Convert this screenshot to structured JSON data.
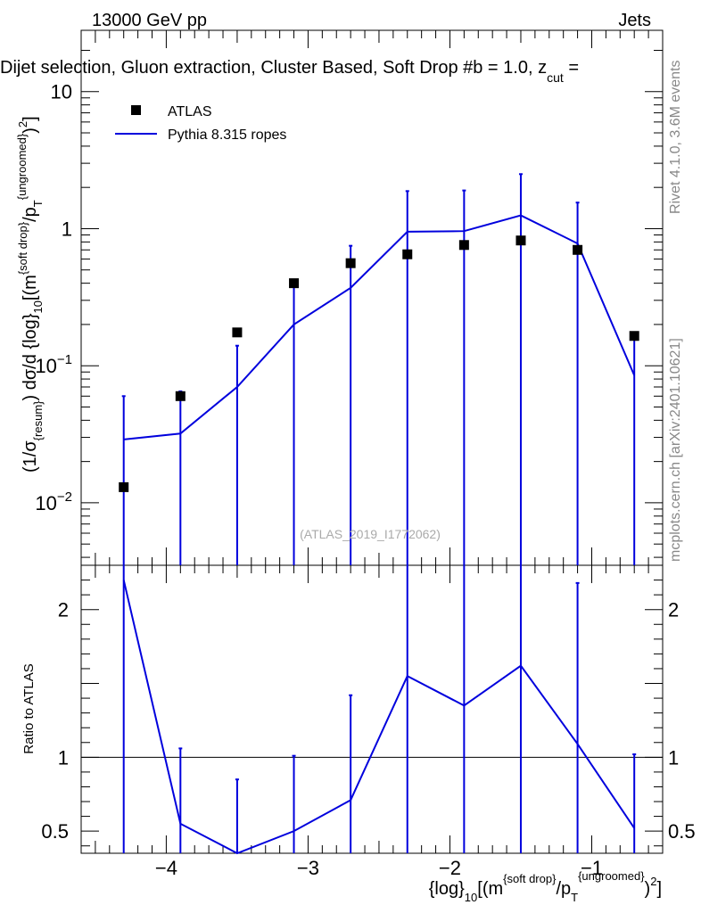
{
  "header": {
    "left": "13000 GeV pp",
    "right": "Jets",
    "title": "Dijet selection, Gluon extraction, Cluster Based, Soft Drop #b = 1.0, z",
    "title_sub": "cut",
    "title_tail": " ="
  },
  "side": {
    "rivet": "Rivet 4.1.0,  3.6M events",
    "mcplots": "mcplots.cern.ch [arXiv:2401.10621]"
  },
  "watermark": "(ATLAS_2019_I1772062)",
  "legend": {
    "data_label": "ATLAS",
    "mc_label": "Pythia 8.315 ropes"
  },
  "axes": {
    "ylabel_main": {
      "p1": "(1/σ",
      "s1": "{resum}",
      "p2": ") dσ/d {log}",
      "s2": "10",
      "p3": "[(m",
      "sup1": "{soft drop}",
      "p4": "/p",
      "s3": "T",
      "sup2": "{ungroomed}",
      "p5": ")",
      "sup3": "2",
      "p6": "]"
    },
    "ylabel_ratio": "Ratio to ATLAS",
    "xlabel": {
      "p1": "{log}",
      "s1": "10",
      "p2": "[(m",
      "sup1": "{soft drop}",
      "p3": "/p",
      "s2": "T",
      "sup2": "{ungroomed}",
      "p4": ")",
      "sup3": "2",
      "p5": "]"
    }
  },
  "chart_data": {
    "type": "scatter",
    "xlim": [
      -4.6,
      -0.5
    ],
    "x_ticks": [
      -4,
      -3,
      -2,
      -1
    ],
    "x_tick_labels": [
      "−4",
      "−3",
      "−2",
      "−1"
    ],
    "main": {
      "yscale": "log",
      "ylim": [
        0.0035,
        28
      ],
      "y_ticks": [
        {
          "v": 10,
          "label": "10"
        },
        {
          "v": 1,
          "label": "1"
        },
        {
          "v": 0.1,
          "base": "10",
          "exp": "−1"
        },
        {
          "v": 0.01,
          "base": "10",
          "exp": "−2"
        }
      ]
    },
    "ratio": {
      "ylim": [
        0.35,
        2.3
      ],
      "y_ticks": [
        {
          "v": 2,
          "label": "2"
        },
        {
          "v": 1.5,
          "label": ""
        },
        {
          "v": 1,
          "label": "1"
        },
        {
          "v": 0.5,
          "label": "0.5"
        }
      ],
      "reference": 1
    },
    "series": [
      {
        "name": "ATLAS",
        "kind": "data",
        "color": "#000000",
        "x": [
          -4.3,
          -3.9,
          -3.5,
          -3.1,
          -2.7,
          -2.3,
          -1.9,
          -1.5,
          -1.1,
          -0.7
        ],
        "y": [
          0.013,
          0.06,
          0.175,
          0.4,
          0.56,
          0.65,
          0.76,
          0.82,
          0.7,
          0.165
        ],
        "yerr_up": [
          0.06,
          0.065,
          0.14,
          0.42,
          0.75,
          1.88,
          1.9,
          2.5,
          1.55,
          0.175
        ]
      },
      {
        "name": "Pythia 8.315 ropes",
        "kind": "mc",
        "color": "#0000dd",
        "x_edges": [
          -4.3,
          -3.9,
          -3.5,
          -3.1,
          -2.7,
          -2.3,
          -1.9,
          -1.5,
          -1.1,
          -0.7
        ],
        "y": [
          0.029,
          0.032,
          0.07,
          0.2,
          0.37,
          0.95,
          0.96,
          1.25,
          0.78,
          0.085
        ],
        "yerr_up": [
          0.06,
          0.065,
          0.14,
          0.42,
          0.75,
          1.88,
          1.9,
          2.5,
          1.55,
          0.175
        ]
      }
    ],
    "ratio_series": {
      "x": [
        -4.3,
        -3.9,
        -3.5,
        -3.1,
        -2.7,
        -2.3,
        -1.9,
        -1.5,
        -1.1,
        -0.7
      ],
      "y": [
        2.2,
        0.55,
        0.35,
        0.5,
        0.71,
        1.55,
        1.35,
        1.62,
        1.09,
        0.52
      ],
      "err_up": [
        2.3,
        1.06,
        0.85,
        1.01,
        1.42,
        2.3,
        2.3,
        2.3,
        2.18,
        1.02
      ]
    }
  }
}
